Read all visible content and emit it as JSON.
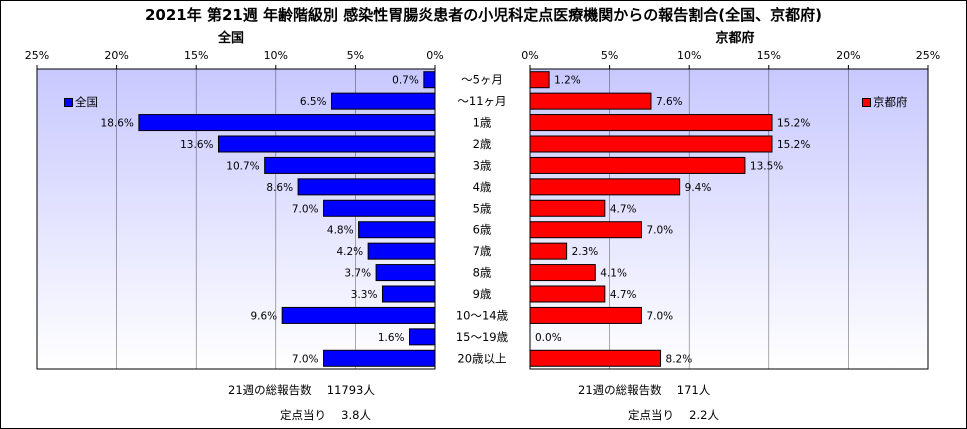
{
  "title": "2021年 第21週 年齢階級別 感染性胃腸炎患者の小児科定点医療機関からの報告割合(全国、京都府)",
  "colors": {
    "national": "#0000ff",
    "kyoto": "#ff0000",
    "plot_bg_top": "#c8c8ff",
    "plot_bg_bottom": "#ffffff"
  },
  "chart_data": [
    {
      "type": "bar",
      "title": "全国",
      "orientation": "horizontal",
      "direction": "right-to-left",
      "xlim": [
        0,
        25
      ],
      "ticks": [
        "25%",
        "20%",
        "15%",
        "10%",
        "5%",
        "0%"
      ],
      "legend": "全国",
      "legend_position": "top-left",
      "categories": [
        "～5ヶ月",
        "～11ヶ月",
        "1歳",
        "2歳",
        "3歳",
        "4歳",
        "5歳",
        "6歳",
        "7歳",
        "8歳",
        "9歳",
        "10～14歳",
        "15～19歳",
        "20歳以上"
      ],
      "values": [
        0.7,
        6.5,
        18.6,
        13.6,
        10.7,
        8.6,
        7.0,
        4.8,
        4.2,
        3.7,
        3.3,
        9.6,
        1.6,
        7.0
      ],
      "labels": [
        "0.7%",
        "6.5%",
        "18.6%",
        "13.6%",
        "10.7%",
        "8.6%",
        "7.0%",
        "4.8%",
        "4.2%",
        "3.7%",
        "3.3%",
        "9.6%",
        "1.6%",
        "7.0%"
      ]
    },
    {
      "type": "bar",
      "title": "京都府",
      "orientation": "horizontal",
      "direction": "left-to-right",
      "xlim": [
        0,
        25
      ],
      "ticks": [
        "0%",
        "5%",
        "10%",
        "15%",
        "20%",
        "25%"
      ],
      "legend": "京都府",
      "legend_position": "top-right",
      "categories": [
        "～5ヶ月",
        "～11ヶ月",
        "1歳",
        "2歳",
        "3歳",
        "4歳",
        "5歳",
        "6歳",
        "7歳",
        "8歳",
        "9歳",
        "10～14歳",
        "15～19歳",
        "20歳以上"
      ],
      "values": [
        1.2,
        7.6,
        15.2,
        15.2,
        13.5,
        9.4,
        4.7,
        7.0,
        2.3,
        4.1,
        4.7,
        7.0,
        0.0,
        8.2
      ],
      "labels": [
        "1.2%",
        "7.6%",
        "15.2%",
        "15.2%",
        "13.5%",
        "9.4%",
        "4.7%",
        "7.0%",
        "2.3%",
        "4.1%",
        "4.7%",
        "7.0%",
        "0.0%",
        "8.2%"
      ]
    }
  ],
  "footer": {
    "national_total": "21週の総報告数　 11793人",
    "national_per": "定点当り　 3.8人",
    "kyoto_total": "21週の総報告数　 171人",
    "kyoto_per": "定点当り　 2.2人"
  }
}
